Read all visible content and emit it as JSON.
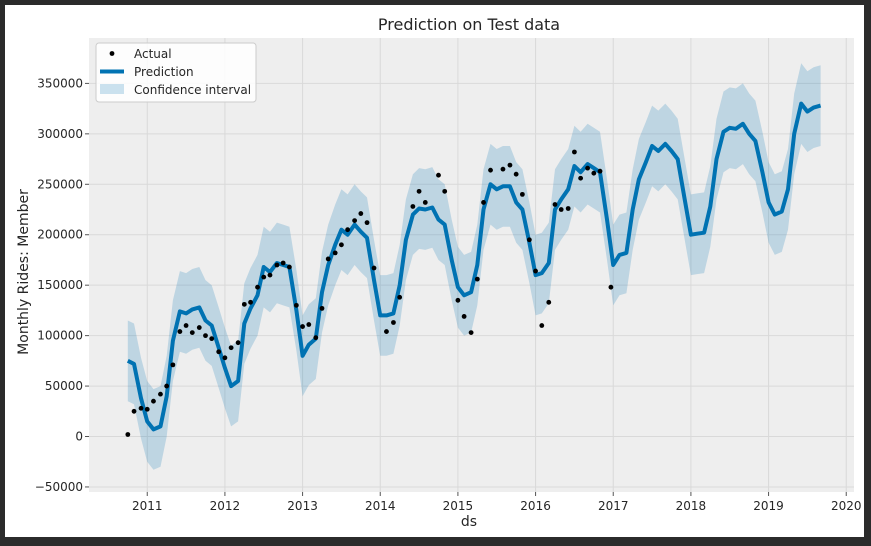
{
  "chart_data": {
    "type": "line",
    "title": "Prediction on Test data",
    "xlabel": "ds",
    "ylabel": "Monthly Rides: Member",
    "xlim": [
      2010.25,
      2020.1
    ],
    "ylim": [
      -55000,
      395000
    ],
    "x_ticks": [
      2011,
      2012,
      2013,
      2014,
      2015,
      2016,
      2017,
      2018,
      2019,
      2020
    ],
    "x_tick_labels": [
      "2011",
      "2012",
      "2013",
      "2014",
      "2015",
      "2016",
      "2017",
      "2018",
      "2019",
      "2020"
    ],
    "y_ticks": [
      -50000,
      0,
      50000,
      100000,
      150000,
      200000,
      250000,
      300000,
      350000
    ],
    "y_tick_labels": [
      "−50000",
      "0",
      "50000",
      "100000",
      "150000",
      "200000",
      "250000",
      "300000",
      "350000"
    ],
    "grid": true,
    "legend_position": "top-left",
    "legend": [
      "Actual",
      "Prediction",
      "Confidence interval"
    ],
    "colors": {
      "prediction": "#0072b2",
      "interval": "#0072b2",
      "actual": "#000000",
      "plot_background": "#eeeeee",
      "grid": "#d9d9d9",
      "frame_border": "#2b2b2b"
    },
    "actual": [
      {
        "x": 2010.75,
        "y": 2000
      },
      {
        "x": 2010.83,
        "y": 25000
      },
      {
        "x": 2010.92,
        "y": 28000
      },
      {
        "x": 2011.0,
        "y": 27000
      },
      {
        "x": 2011.08,
        "y": 35000
      },
      {
        "x": 2011.17,
        "y": 42000
      },
      {
        "x": 2011.25,
        "y": 50000
      },
      {
        "x": 2011.33,
        "y": 71000
      },
      {
        "x": 2011.42,
        "y": 104000
      },
      {
        "x": 2011.5,
        "y": 110000
      },
      {
        "x": 2011.58,
        "y": 103000
      },
      {
        "x": 2011.67,
        "y": 108000
      },
      {
        "x": 2011.75,
        "y": 100000
      },
      {
        "x": 2011.83,
        "y": 97000
      },
      {
        "x": 2011.92,
        "y": 84000
      },
      {
        "x": 2012.0,
        "y": 78000
      },
      {
        "x": 2012.08,
        "y": 88000
      },
      {
        "x": 2012.17,
        "y": 93000
      },
      {
        "x": 2012.25,
        "y": 131000
      },
      {
        "x": 2012.33,
        "y": 133000
      },
      {
        "x": 2012.42,
        "y": 148000
      },
      {
        "x": 2012.5,
        "y": 158000
      },
      {
        "x": 2012.58,
        "y": 160000
      },
      {
        "x": 2012.67,
        "y": 170000
      },
      {
        "x": 2012.75,
        "y": 172000
      },
      {
        "x": 2012.83,
        "y": 168000
      },
      {
        "x": 2012.92,
        "y": 130000
      },
      {
        "x": 2013.0,
        "y": 109000
      },
      {
        "x": 2013.08,
        "y": 111000
      },
      {
        "x": 2013.17,
        "y": 98000
      },
      {
        "x": 2013.25,
        "y": 127000
      },
      {
        "x": 2013.33,
        "y": 176000
      },
      {
        "x": 2013.42,
        "y": 182000
      },
      {
        "x": 2013.5,
        "y": 190000
      },
      {
        "x": 2013.58,
        "y": 205000
      },
      {
        "x": 2013.67,
        "y": 214000
      },
      {
        "x": 2013.75,
        "y": 221000
      },
      {
        "x": 2013.83,
        "y": 212000
      },
      {
        "x": 2013.92,
        "y": 167000
      },
      {
        "x": 2014.08,
        "y": 104000
      },
      {
        "x": 2014.17,
        "y": 113000
      },
      {
        "x": 2014.25,
        "y": 138000
      },
      {
        "x": 2014.42,
        "y": 228000
      },
      {
        "x": 2014.5,
        "y": 243000
      },
      {
        "x": 2014.58,
        "y": 232000
      },
      {
        "x": 2014.75,
        "y": 259000
      },
      {
        "x": 2014.83,
        "y": 243000
      },
      {
        "x": 2015.0,
        "y": 135000
      },
      {
        "x": 2015.08,
        "y": 119000
      },
      {
        "x": 2015.17,
        "y": 103000
      },
      {
        "x": 2015.25,
        "y": 156000
      },
      {
        "x": 2015.33,
        "y": 232000
      },
      {
        "x": 2015.42,
        "y": 264000
      },
      {
        "x": 2015.58,
        "y": 265000
      },
      {
        "x": 2015.67,
        "y": 269000
      },
      {
        "x": 2015.75,
        "y": 260000
      },
      {
        "x": 2015.83,
        "y": 240000
      },
      {
        "x": 2015.92,
        "y": 195000
      },
      {
        "x": 2016.0,
        "y": 164000
      },
      {
        "x": 2016.08,
        "y": 110000
      },
      {
        "x": 2016.17,
        "y": 133000
      },
      {
        "x": 2016.25,
        "y": 230000
      },
      {
        "x": 2016.33,
        "y": 225000
      },
      {
        "x": 2016.42,
        "y": 226000
      },
      {
        "x": 2016.5,
        "y": 282000
      },
      {
        "x": 2016.58,
        "y": 256000
      },
      {
        "x": 2016.67,
        "y": 266000
      },
      {
        "x": 2016.75,
        "y": 261000
      },
      {
        "x": 2016.83,
        "y": 263000
      },
      {
        "x": 2016.97,
        "y": 148000
      }
    ],
    "prediction": {
      "x": [
        2010.75,
        2010.83,
        2010.92,
        2011.0,
        2011.08,
        2011.17,
        2011.25,
        2011.33,
        2011.42,
        2011.5,
        2011.58,
        2011.67,
        2011.75,
        2011.83,
        2011.92,
        2012.0,
        2012.08,
        2012.17,
        2012.25,
        2012.33,
        2012.42,
        2012.5,
        2012.58,
        2012.67,
        2012.75,
        2012.83,
        2012.92,
        2013.0,
        2013.08,
        2013.17,
        2013.25,
        2013.33,
        2013.42,
        2013.5,
        2013.58,
        2013.67,
        2013.75,
        2013.83,
        2013.92,
        2014.0,
        2014.08,
        2014.17,
        2014.25,
        2014.33,
        2014.42,
        2014.5,
        2014.58,
        2014.67,
        2014.75,
        2014.83,
        2014.92,
        2015.0,
        2015.08,
        2015.17,
        2015.25,
        2015.33,
        2015.42,
        2015.5,
        2015.58,
        2015.67,
        2015.75,
        2015.83,
        2015.92,
        2016.0,
        2016.08,
        2016.17,
        2016.25,
        2016.33,
        2016.42,
        2016.5,
        2016.58,
        2016.67,
        2016.75,
        2016.83,
        2016.92,
        2017.0,
        2017.08,
        2017.17,
        2017.25,
        2017.33,
        2017.42,
        2017.5,
        2017.58,
        2017.67,
        2017.75,
        2017.83,
        2017.92,
        2018.0,
        2018.08,
        2018.17,
        2018.25,
        2018.33,
        2018.42,
        2018.5,
        2018.58,
        2018.67,
        2018.75,
        2018.83,
        2018.92,
        2019.0,
        2019.08,
        2019.17,
        2019.25,
        2019.33,
        2019.42,
        2019.5,
        2019.58,
        2019.67
      ],
      "y": [
        75000,
        72000,
        38000,
        15000,
        7000,
        10000,
        40000,
        95000,
        124000,
        122000,
        126000,
        128000,
        115000,
        110000,
        88000,
        68000,
        50000,
        55000,
        112000,
        127000,
        140000,
        168000,
        163000,
        172000,
        170000,
        168000,
        125000,
        80000,
        91000,
        97000,
        143000,
        170000,
        190000,
        205000,
        200000,
        210000,
        203000,
        197000,
        155000,
        120000,
        120000,
        122000,
        150000,
        195000,
        220000,
        226000,
        225000,
        227000,
        215000,
        210000,
        175000,
        148000,
        140000,
        143000,
        170000,
        225000,
        250000,
        245000,
        248000,
        248000,
        232000,
        225000,
        192000,
        160000,
        162000,
        172000,
        225000,
        235000,
        245000,
        268000,
        262000,
        270000,
        266000,
        262000,
        215000,
        170000,
        180000,
        182000,
        225000,
        255000,
        272000,
        288000,
        283000,
        290000,
        283000,
        275000,
        235000,
        200000,
        201000,
        202000,
        228000,
        275000,
        302000,
        306000,
        305000,
        310000,
        300000,
        293000,
        262000,
        232000,
        220000,
        223000,
        245000,
        300000,
        330000,
        322000,
        326000,
        328000
      ]
    },
    "interval": {
      "upper": [
        115000,
        112000,
        78000,
        55000,
        47000,
        50000,
        80000,
        135000,
        164000,
        162000,
        166000,
        168000,
        155000,
        150000,
        128000,
        108000,
        90000,
        95000,
        152000,
        167000,
        180000,
        208000,
        203000,
        212000,
        210000,
        208000,
        165000,
        120000,
        131000,
        137000,
        183000,
        210000,
        230000,
        245000,
        240000,
        250000,
        243000,
        237000,
        195000,
        160000,
        160000,
        162000,
        190000,
        235000,
        260000,
        266000,
        265000,
        267000,
        255000,
        250000,
        215000,
        188000,
        180000,
        183000,
        210000,
        265000,
        290000,
        285000,
        288000,
        288000,
        272000,
        265000,
        232000,
        200000,
        202000,
        212000,
        265000,
        275000,
        285000,
        308000,
        302000,
        310000,
        306000,
        302000,
        255000,
        210000,
        220000,
        222000,
        265000,
        295000,
        312000,
        328000,
        323000,
        330000,
        323000,
        315000,
        275000,
        240000,
        241000,
        242000,
        268000,
        315000,
        342000,
        346000,
        345000,
        350000,
        340000,
        333000,
        302000,
        272000,
        260000,
        263000,
        285000,
        340000,
        370000,
        362000,
        366000,
        368000
      ],
      "lower": [
        35000,
        32000,
        -2000,
        -25000,
        -33000,
        -30000,
        0,
        55000,
        84000,
        82000,
        86000,
        88000,
        75000,
        70000,
        48000,
        28000,
        10000,
        15000,
        72000,
        87000,
        100000,
        128000,
        123000,
        132000,
        130000,
        128000,
        85000,
        40000,
        51000,
        57000,
        103000,
        130000,
        150000,
        165000,
        160000,
        170000,
        163000,
        157000,
        115000,
        80000,
        80000,
        82000,
        110000,
        155000,
        180000,
        186000,
        185000,
        187000,
        175000,
        170000,
        135000,
        108000,
        100000,
        103000,
        130000,
        185000,
        210000,
        205000,
        208000,
        208000,
        192000,
        185000,
        152000,
        120000,
        122000,
        132000,
        185000,
        195000,
        205000,
        228000,
        222000,
        230000,
        226000,
        222000,
        175000,
        130000,
        140000,
        142000,
        185000,
        215000,
        232000,
        248000,
        243000,
        250000,
        243000,
        235000,
        195000,
        160000,
        161000,
        162000,
        188000,
        235000,
        262000,
        266000,
        265000,
        270000,
        260000,
        253000,
        222000,
        192000,
        180000,
        183000,
        205000,
        260000,
        290000,
        282000,
        286000,
        288000
      ]
    }
  }
}
